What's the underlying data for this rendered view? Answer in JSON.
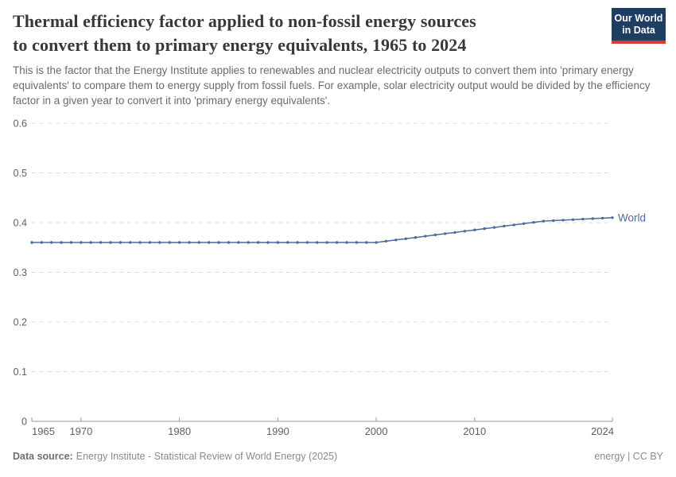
{
  "logo": {
    "line1": "Our World",
    "line2": "in Data"
  },
  "header": {
    "title_line1": "Thermal efficiency factor applied to non-fossil energy sources",
    "title_line2": "to convert them to primary energy equivalents, 1965 to 2024",
    "subtitle": "This is the factor that the Energy Institute applies to renewables and nuclear electricity outputs to convert them into 'primary energy equivalents' to compare them to energy supply from fossil fuels. For example, solar electricity output would be divided by the efficiency factor in a given year to convert it into 'primary energy equivalents'."
  },
  "footer": {
    "datasource_label": "Data source:",
    "datasource_value": "Energy Institute - Statistical Review of World Energy (2025)",
    "license": "energy | CC BY"
  },
  "colors": {
    "line": "#4c6a9c",
    "grid": "#dcdcdc",
    "axis": "#9a9a9a",
    "tick_text": "#5f5f5f",
    "logo_bg": "#1d3d63",
    "logo_red": "#d93a32"
  },
  "chart_data": {
    "type": "line",
    "title": "Thermal efficiency factor applied to non-fossil energy sources to convert them to primary energy equivalents, 1965 to 2024",
    "xlabel": "",
    "ylabel": "",
    "xlim": [
      1965,
      2024
    ],
    "ylim": [
      0,
      0.6
    ],
    "x_ticks": [
      1965,
      1970,
      1980,
      1990,
      2000,
      2010,
      2024
    ],
    "y_ticks": [
      0,
      0.1,
      0.2,
      0.3,
      0.4,
      0.5,
      0.6
    ],
    "grid": "horizontal-dashed",
    "legend_position": "end-of-line",
    "series": [
      {
        "name": "World",
        "color": "#4c6a9c",
        "x": [
          1965,
          1966,
          1967,
          1968,
          1969,
          1970,
          1971,
          1972,
          1973,
          1974,
          1975,
          1976,
          1977,
          1978,
          1979,
          1980,
          1981,
          1982,
          1983,
          1984,
          1985,
          1986,
          1987,
          1988,
          1989,
          1990,
          1991,
          1992,
          1993,
          1994,
          1995,
          1996,
          1997,
          1998,
          1999,
          2000,
          2001,
          2002,
          2003,
          2004,
          2005,
          2006,
          2007,
          2008,
          2009,
          2010,
          2011,
          2012,
          2013,
          2014,
          2015,
          2016,
          2017,
          2018,
          2019,
          2020,
          2021,
          2022,
          2023,
          2024
        ],
        "y": [
          0.36,
          0.36,
          0.36,
          0.36,
          0.36,
          0.36,
          0.36,
          0.36,
          0.36,
          0.36,
          0.36,
          0.36,
          0.36,
          0.36,
          0.36,
          0.36,
          0.36,
          0.36,
          0.36,
          0.36,
          0.36,
          0.36,
          0.36,
          0.36,
          0.36,
          0.36,
          0.36,
          0.36,
          0.36,
          0.36,
          0.36,
          0.36,
          0.36,
          0.36,
          0.36,
          0.36,
          0.3625,
          0.3651,
          0.3676,
          0.3701,
          0.3726,
          0.3752,
          0.3777,
          0.3802,
          0.3828,
          0.3853,
          0.3878,
          0.3903,
          0.3929,
          0.3954,
          0.3979,
          0.4005,
          0.403,
          0.404,
          0.405,
          0.406,
          0.407,
          0.408,
          0.409,
          0.41
        ]
      }
    ]
  }
}
